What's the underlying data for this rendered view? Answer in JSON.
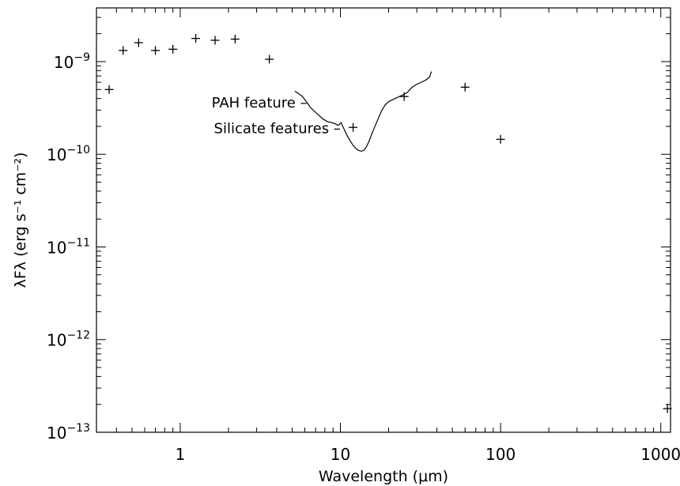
{
  "chart_data": {
    "type": "scatter",
    "title": "",
    "xlabel": "Wavelength (μm)",
    "ylabel": "λFλ (erg s⁻¹ cm⁻²)",
    "xscale": "log",
    "yscale": "log",
    "xlim": [
      0.3,
      1150
    ],
    "ylim": [
      1e-13,
      3.8e-09
    ],
    "x_ticks": [
      {
        "value": 1,
        "label": "1"
      },
      {
        "value": 10,
        "label": "10"
      },
      {
        "value": 100,
        "label": "100"
      },
      {
        "value": 1000,
        "label": "1000"
      }
    ],
    "y_ticks": [
      {
        "value": 1e-13,
        "base": "10",
        "exp": "−13"
      },
      {
        "value": 1e-12,
        "base": "10",
        "exp": "−12"
      },
      {
        "value": 1e-11,
        "base": "10",
        "exp": "−11"
      },
      {
        "value": 1e-10,
        "base": "10",
        "exp": "−10"
      },
      {
        "value": 1e-09,
        "base": "10",
        "exp": "−9"
      }
    ],
    "grid": false,
    "legend": "none",
    "series": [
      {
        "marker": "plus",
        "points": [
          {
            "x": 0.36,
            "y": 5e-10
          },
          {
            "x": 0.44,
            "y": 1.32e-09
          },
          {
            "x": 0.55,
            "y": 1.6e-09
          },
          {
            "x": 0.7,
            "y": 1.32e-09
          },
          {
            "x": 0.9,
            "y": 1.36e-09
          },
          {
            "x": 1.25,
            "y": 1.78e-09
          },
          {
            "x": 1.65,
            "y": 1.7e-09
          },
          {
            "x": 2.2,
            "y": 1.75e-09
          },
          {
            "x": 3.6,
            "y": 1.06e-09
          },
          {
            "x": 12,
            "y": 1.95e-10
          },
          {
            "x": 25,
            "y": 4.2e-10
          },
          {
            "x": 60,
            "y": 5.3e-10
          },
          {
            "x": 100,
            "y": 1.45e-10
          },
          {
            "x": 1100,
            "y": 1.8e-13
          }
        ]
      },
      {
        "style": "line",
        "points": [
          {
            "x": 5.2,
            "y": 4.8e-10
          },
          {
            "x": 5.5,
            "y": 4.5e-10
          },
          {
            "x": 5.8,
            "y": 4.2e-10
          },
          {
            "x": 6.2,
            "y": 3.6e-10
          },
          {
            "x": 6.5,
            "y": 3.2e-10
          },
          {
            "x": 6.9,
            "y": 2.9e-10
          },
          {
            "x": 7.3,
            "y": 2.65e-10
          },
          {
            "x": 7.8,
            "y": 2.4e-10
          },
          {
            "x": 8.3,
            "y": 2.25e-10
          },
          {
            "x": 8.8,
            "y": 2.2e-10
          },
          {
            "x": 9.2,
            "y": 2.15e-10
          },
          {
            "x": 9.7,
            "y": 2.05e-10
          },
          {
            "x": 10.1,
            "y": 2.2e-10
          },
          {
            "x": 10.5,
            "y": 1.9e-10
          },
          {
            "x": 11.0,
            "y": 1.6e-10
          },
          {
            "x": 11.5,
            "y": 1.4e-10
          },
          {
            "x": 12.0,
            "y": 1.25e-10
          },
          {
            "x": 12.5,
            "y": 1.15e-10
          },
          {
            "x": 13.0,
            "y": 1.1e-10
          },
          {
            "x": 13.5,
            "y": 1.08e-10
          },
          {
            "x": 14.0,
            "y": 1.1e-10
          },
          {
            "x": 14.5,
            "y": 1.2e-10
          },
          {
            "x": 15.0,
            "y": 1.35e-10
          },
          {
            "x": 16.0,
            "y": 1.8e-10
          },
          {
            "x": 17.0,
            "y": 2.3e-10
          },
          {
            "x": 18.0,
            "y": 2.9e-10
          },
          {
            "x": 19.0,
            "y": 3.4e-10
          },
          {
            "x": 20.0,
            "y": 3.7e-10
          },
          {
            "x": 22.0,
            "y": 4e-10
          },
          {
            "x": 24.0,
            "y": 4.3e-10
          },
          {
            "x": 26.0,
            "y": 4.6e-10
          },
          {
            "x": 28.0,
            "y": 5.3e-10
          },
          {
            "x": 30.0,
            "y": 5.7e-10
          },
          {
            "x": 32.0,
            "y": 6e-10
          },
          {
            "x": 34.0,
            "y": 6.3e-10
          },
          {
            "x": 36.0,
            "y": 6.8e-10
          },
          {
            "x": 37.0,
            "y": 7.8e-10
          }
        ]
      }
    ],
    "annotations": [
      {
        "text": "PAH feature –",
        "x": 6.5,
        "y": 3.6e-10
      },
      {
        "text": "Silicate features –",
        "x": 10.5,
        "y": 1.9e-10
      }
    ]
  }
}
